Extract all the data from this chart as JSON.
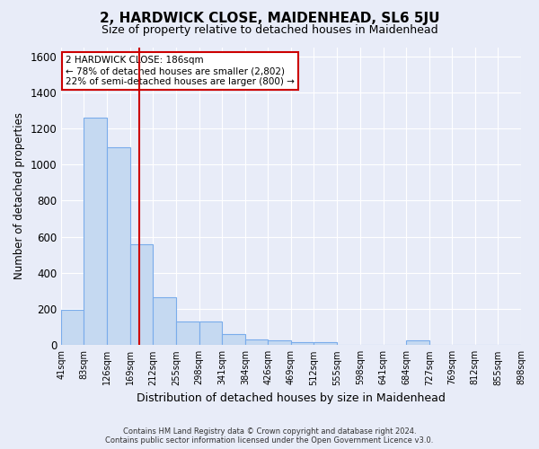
{
  "title": "2, HARDWICK CLOSE, MAIDENHEAD, SL6 5JU",
  "subtitle": "Size of property relative to detached houses in Maidenhead",
  "xlabel": "Distribution of detached houses by size in Maidenhead",
  "ylabel": "Number of detached properties",
  "footer_line1": "Contains HM Land Registry data © Crown copyright and database right 2024.",
  "footer_line2": "Contains public sector information licensed under the Open Government Licence v3.0.",
  "annotation_line1": "2 HARDWICK CLOSE: 186sqm",
  "annotation_line2": "← 78% of detached houses are smaller (2,802)",
  "annotation_line3": "22% of semi-detached houses are larger (800) →",
  "bin_labels": [
    "41sqm",
    "83sqm",
    "126sqm",
    "169sqm",
    "212sqm",
    "255sqm",
    "298sqm",
    "341sqm",
    "384sqm",
    "426sqm",
    "469sqm",
    "512sqm",
    "555sqm",
    "598sqm",
    "641sqm",
    "684sqm",
    "727sqm",
    "769sqm",
    "812sqm",
    "855sqm",
    "898sqm"
  ],
  "bin_edges": [
    41,
    83,
    126,
    169,
    212,
    255,
    298,
    341,
    384,
    426,
    469,
    512,
    555,
    598,
    641,
    684,
    727,
    769,
    812,
    855,
    898
  ],
  "bar_heights": [
    195,
    1260,
    1095,
    560,
    265,
    130,
    130,
    60,
    30,
    25,
    18,
    18,
    0,
    0,
    0,
    25,
    0,
    0,
    0,
    0
  ],
  "bar_color": "#c5d9f1",
  "bar_edge_color": "#7aaceb",
  "vline_color": "#cc0000",
  "vline_x": 186,
  "ylim": [
    0,
    1650
  ],
  "yticks": [
    0,
    200,
    400,
    600,
    800,
    1000,
    1200,
    1400,
    1600
  ],
  "bg_color": "#e8ecf8",
  "grid_color": "#ffffff",
  "annotation_box_color": "#ffffff",
  "annotation_box_edge_color": "#cc0000",
  "title_fontsize": 11,
  "subtitle_fontsize": 9
}
